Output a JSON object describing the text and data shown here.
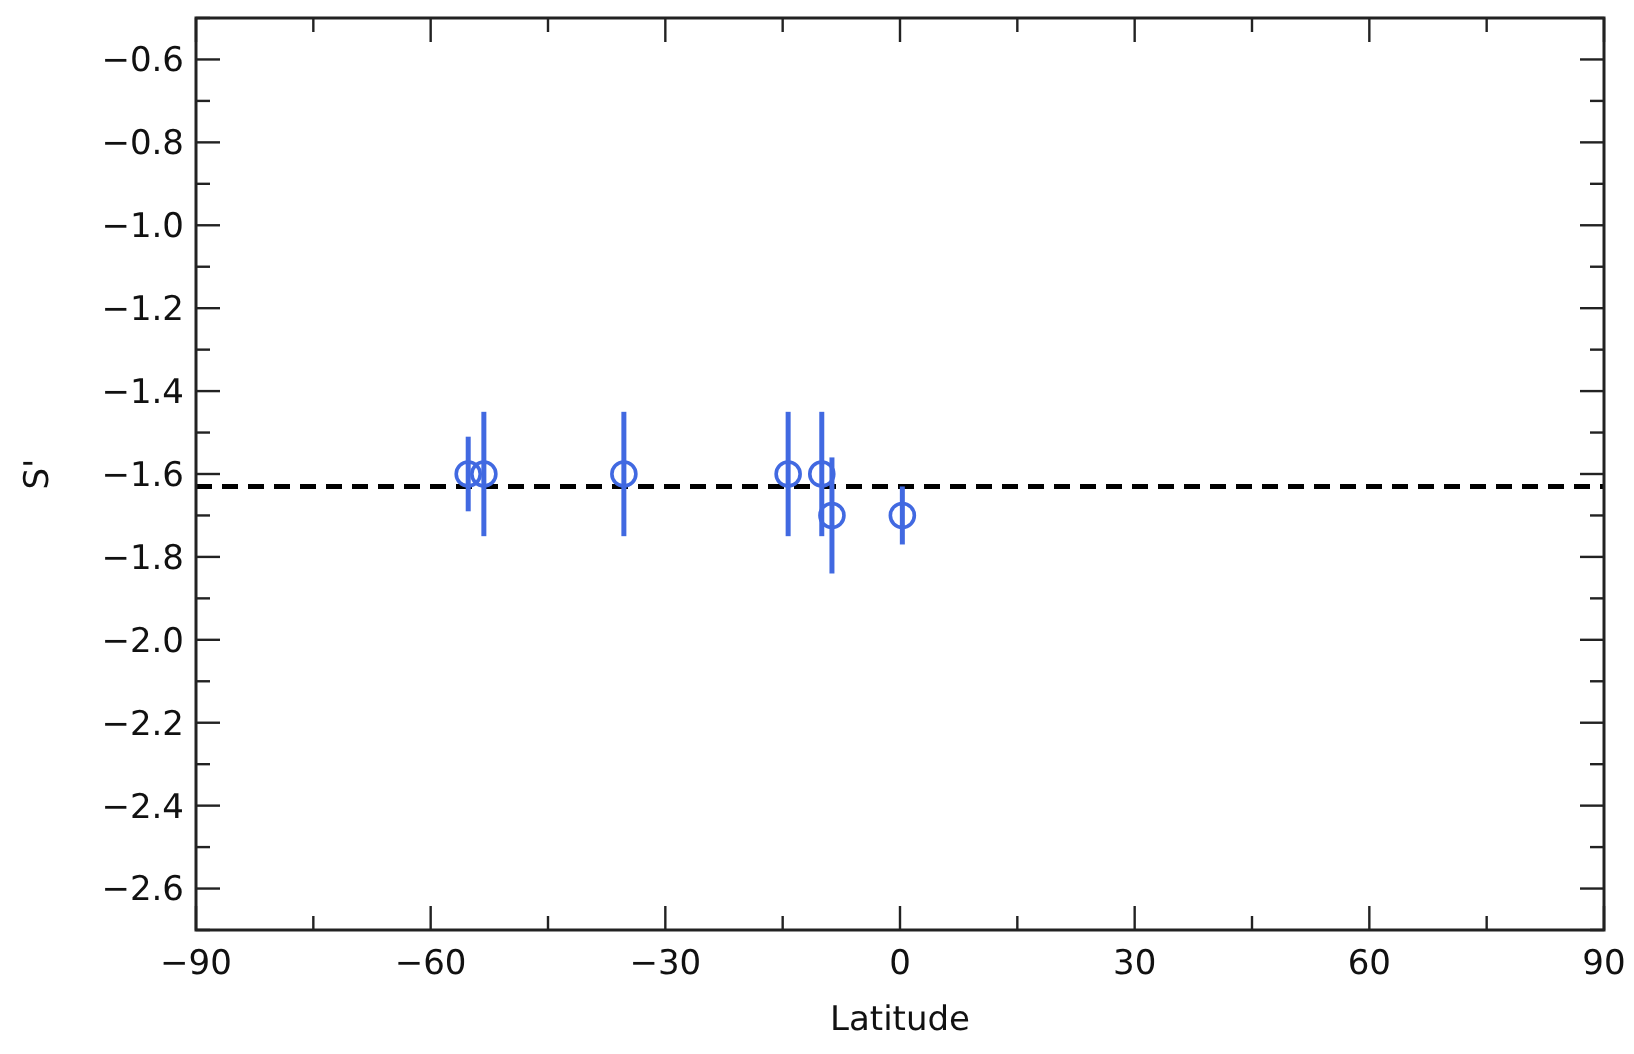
{
  "chart_data": {
    "type": "scatter",
    "xlabel": "Latitude",
    "ylabel": "S'",
    "x": [
      -55.2,
      -53.2,
      -35.3,
      -14.3,
      -10.0,
      -8.7,
      0.3
    ],
    "series": [
      {
        "color": "#4169e1",
        "values": [
          -1.6,
          -1.6,
          -1.6,
          -1.6,
          -1.6,
          -1.7,
          -1.7
        ],
        "errors": [
          0.09,
          0.15,
          0.15,
          0.15,
          0.15,
          0.14,
          0.07
        ]
      }
    ],
    "marker": "circle",
    "grid": false,
    "xlim": [
      -90,
      90
    ],
    "xticks": [
      -90,
      {
        "value": -75,
        "label": null
      },
      -60,
      {
        "value": -45,
        "label": null
      },
      -30,
      {
        "value": -15,
        "label": null
      },
      0,
      {
        "value": 15,
        "label": null
      },
      30,
      {
        "value": 45,
        "label": null
      },
      60,
      {
        "value": 75,
        "label": null
      },
      90
    ],
    "ylim": [
      -2.7,
      -0.5
    ],
    "yticks": [
      {
        "value": -2.7,
        "label": null
      },
      {
        "value": -2.6,
        "label": "−2.6"
      },
      {
        "value": -2.5,
        "label": null
      },
      {
        "value": -2.4,
        "label": "−2.4"
      },
      {
        "value": -2.3,
        "label": null
      },
      {
        "value": -2.2,
        "label": "−2.2"
      },
      {
        "value": -2.1,
        "label": null
      },
      {
        "value": -2.0,
        "label": "−2.0"
      },
      {
        "value": -1.9,
        "label": null
      },
      {
        "value": -1.8,
        "label": "−1.8"
      },
      {
        "value": -1.7,
        "label": null
      },
      {
        "value": -1.6,
        "label": "−1.6"
      },
      {
        "value": -1.5,
        "label": null
      },
      {
        "value": -1.4,
        "label": "−1.4"
      },
      {
        "value": -1.3,
        "label": null
      },
      {
        "value": -1.2,
        "label": "−1.2"
      },
      {
        "value": -1.1,
        "label": null
      },
      {
        "value": -1.0,
        "label": "−1.0"
      },
      {
        "value": -0.9,
        "label": null
      },
      {
        "value": -0.8,
        "label": "−0.8"
      },
      {
        "value": -0.7,
        "label": null
      },
      {
        "value": -0.6,
        "label": "−0.6"
      },
      {
        "value": -0.5,
        "label": null
      }
    ],
    "ref_lines": [
      {
        "axis": "y",
        "value": -1.63,
        "color": "#000000",
        "line_style": "dashed"
      }
    ]
  }
}
